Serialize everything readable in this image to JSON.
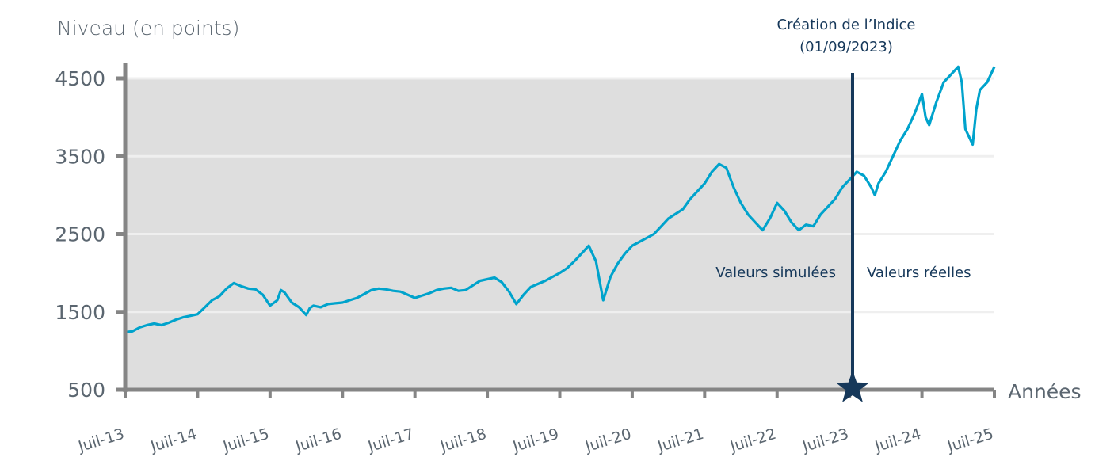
{
  "chart_data": {
    "type": "line",
    "title": "",
    "ylabel": "Niveau (en points)",
    "xlabel": "Années",
    "ylim": [
      500,
      4500
    ],
    "yticks": [
      500,
      1500,
      2500,
      3500,
      4500
    ],
    "ytick_labels": [
      "500",
      "1500",
      "2500",
      "3500",
      "4500"
    ],
    "xlim": [
      2013.5,
      2025.5
    ],
    "xticks": [
      2013.5,
      2014.5,
      2015.5,
      2016.5,
      2017.5,
      2018.5,
      2019.5,
      2020.5,
      2021.5,
      2022.5,
      2023.5,
      2024.5,
      2025.5
    ],
    "xtick_labels": [
      "Juil-13",
      "Juil-14",
      "Juil-15",
      "Juil-16",
      "Juil-17",
      "Juil-18",
      "Juil-19",
      "Juil-20",
      "Juil-21",
      "Juil-22",
      "Juil-23",
      "Juil-24",
      "Juil-25"
    ],
    "grid": true,
    "legend": "none",
    "shaded_region": {
      "from": 2013.5,
      "to": 2023.67,
      "label": "Valeurs simulées"
    },
    "real_region_label": "Valeurs réelles",
    "event": {
      "x": 2023.67,
      "label_line1": "Création de l’Indice",
      "label_line2": "(01/09/2023)",
      "marker": "star"
    },
    "colors": {
      "line": "#00a3cc",
      "event": "#16385a",
      "shade": "#dedede",
      "axis": "#858585",
      "grid": "#efefef"
    },
    "series": [
      {
        "name": "Niveau",
        "x": [
          2013.5,
          2013.6,
          2013.7,
          2013.8,
          2013.9,
          2014.0,
          2014.1,
          2014.2,
          2014.3,
          2014.4,
          2014.5,
          2014.6,
          2014.7,
          2014.8,
          2014.9,
          2015.0,
          2015.1,
          2015.2,
          2015.3,
          2015.4,
          2015.5,
          2015.6,
          2015.65,
          2015.7,
          2015.8,
          2015.9,
          2016.0,
          2016.05,
          2016.1,
          2016.2,
          2016.3,
          2016.4,
          2016.5,
          2016.6,
          2016.7,
          2016.8,
          2016.9,
          2017.0,
          2017.1,
          2017.2,
          2017.3,
          2017.4,
          2017.5,
          2017.6,
          2017.7,
          2017.8,
          2017.9,
          2018.0,
          2018.1,
          2018.2,
          2018.3,
          2018.4,
          2018.5,
          2018.6,
          2018.7,
          2018.8,
          2018.9,
          2019.0,
          2019.1,
          2019.2,
          2019.3,
          2019.4,
          2019.5,
          2019.6,
          2019.7,
          2019.8,
          2019.9,
          2020.0,
          2020.1,
          2020.15,
          2020.2,
          2020.3,
          2020.4,
          2020.5,
          2020.6,
          2020.7,
          2020.8,
          2020.9,
          2021.0,
          2021.1,
          2021.2,
          2021.3,
          2021.4,
          2021.5,
          2021.6,
          2021.7,
          2021.8,
          2021.9,
          2022.0,
          2022.1,
          2022.2,
          2022.3,
          2022.4,
          2022.5,
          2022.6,
          2022.7,
          2022.8,
          2022.9,
          2023.0,
          2023.1,
          2023.2,
          2023.3,
          2023.4,
          2023.5,
          2023.6,
          2023.7,
          2023.8,
          2023.85,
          2023.9,
          2024.0,
          2024.1,
          2024.2,
          2024.3,
          2024.4,
          2024.5,
          2024.55,
          2024.6,
          2024.7,
          2024.8,
          2024.9,
          2025.0,
          2025.05,
          2025.1,
          2025.2,
          2025.25,
          2025.3,
          2025.4,
          2025.5
        ],
        "values": [
          1240,
          1250,
          1300,
          1330,
          1350,
          1330,
          1360,
          1400,
          1430,
          1450,
          1470,
          1560,
          1650,
          1700,
          1800,
          1870,
          1830,
          1800,
          1790,
          1720,
          1580,
          1650,
          1780,
          1750,
          1620,
          1560,
          1460,
          1550,
          1580,
          1560,
          1600,
          1610,
          1620,
          1650,
          1680,
          1730,
          1780,
          1800,
          1790,
          1770,
          1760,
          1720,
          1680,
          1710,
          1740,
          1780,
          1800,
          1810,
          1770,
          1780,
          1840,
          1900,
          1920,
          1940,
          1880,
          1760,
          1600,
          1720,
          1820,
          1860,
          1900,
          1950,
          2000,
          2060,
          2150,
          2250,
          2350,
          2150,
          1650,
          1800,
          1950,
          2120,
          2250,
          2350,
          2400,
          2450,
          2500,
          2600,
          2700,
          2760,
          2820,
          2950,
          3050,
          3150,
          3300,
          3400,
          3350,
          3100,
          2900,
          2750,
          2650,
          2550,
          2700,
          2900,
          2800,
          2650,
          2550,
          2620,
          2600,
          2750,
          2850,
          2950,
          3100,
          3200,
          3300,
          3250,
          3100,
          3000,
          3150,
          3300,
          3500,
          3700,
          3850,
          4050,
          4300,
          4000,
          3900,
          4200,
          4450,
          4550,
          4650,
          4450,
          3850,
          3650,
          4100,
          4350,
          4450,
          4650
        ]
      }
    ]
  }
}
